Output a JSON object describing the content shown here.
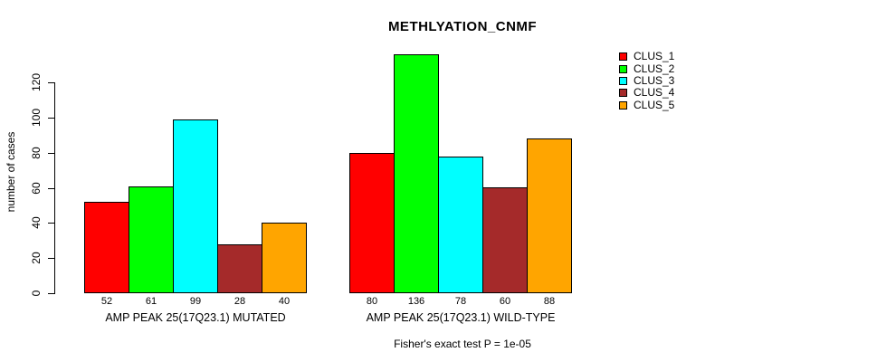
{
  "title": "METHLYATION_CNMF",
  "footer": "Fisher's exact test P = 1e-05",
  "colors": {
    "background": "#FFFFFF",
    "axis": "#000000",
    "bar_border": "#000000"
  },
  "chart_data": {
    "type": "bar",
    "title": "METHLYATION_CNMF",
    "xlabel": "",
    "ylabel": "number of cases",
    "ylim": [
      0,
      136
    ],
    "yticks": [
      0,
      20,
      40,
      60,
      80,
      100,
      120
    ],
    "grid": false,
    "legend_position": "top-right",
    "bar_value_labels_shown": true,
    "categories": [
      "AMP PEAK 25(17Q23.1) MUTATED",
      "AMP PEAK 25(17Q23.1) WILD-TYPE"
    ],
    "series": [
      {
        "name": "CLUS_1",
        "color": "#FF0000",
        "values": [
          52,
          80
        ]
      },
      {
        "name": "CLUS_2",
        "color": "#00FF00",
        "values": [
          61,
          136
        ]
      },
      {
        "name": "CLUS_3",
        "color": "#00FFFF",
        "values": [
          99,
          78
        ]
      },
      {
        "name": "CLUS_4",
        "color": "#A52A2A",
        "values": [
          28,
          60
        ]
      },
      {
        "name": "CLUS_5",
        "color": "#FFA500",
        "values": [
          40,
          88
        ]
      }
    ],
    "annotation": "Fisher's exact test P = 1e-05"
  }
}
